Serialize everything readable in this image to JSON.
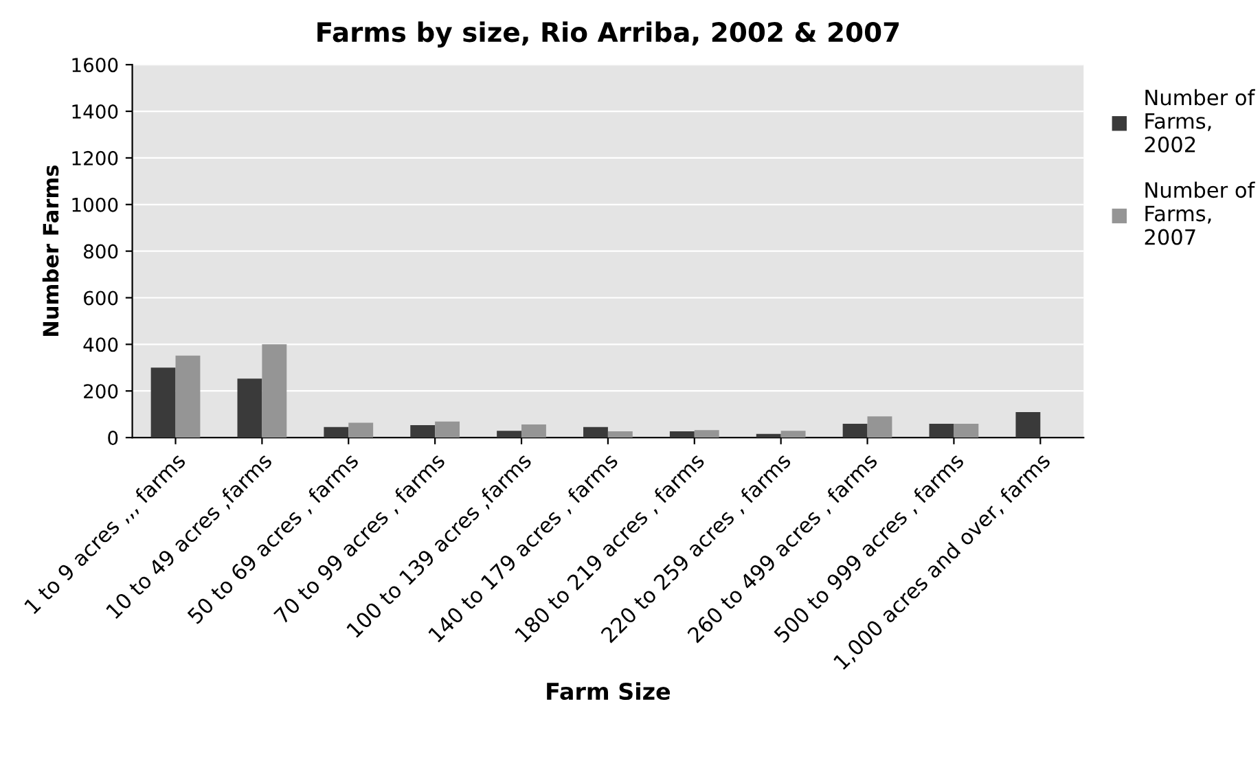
{
  "chart_data": {
    "type": "bar",
    "title": "Farms by size, Rio Arriba, 2002 & 2007",
    "xlabel": "Farm Size",
    "ylabel": "Number Farms",
    "categories": [
      "1 to 9 acres ,,, farms",
      "10 to 49 acres ,farms",
      "50 to 69 acres , farms",
      "70 to 99 acres , farms",
      "100 to 139 acres ,farms",
      "140 to 179 acres , farms",
      "180 to 219 acres , farms",
      "220 to 259 acres , farms",
      "260 to 499 acres , farms",
      "500 to 999 acres , farms",
      "1,000 acres and over, farms"
    ],
    "series": [
      {
        "name": "Number of Farms, 2002",
        "color": "#3a3a3a",
        "values": [
          300,
          253,
          45,
          53,
          29,
          45,
          27,
          16,
          59,
          59,
          109
        ]
      },
      {
        "name": "Number of Farms, 2007",
        "color": "#959595",
        "values": [
          352,
          400,
          64,
          69,
          56,
          27,
          32,
          29,
          91,
          59,
          null
        ]
      }
    ],
    "ylim": [
      0,
      1600
    ],
    "yticks": [
      0,
      200,
      400,
      600,
      800,
      1000,
      1200,
      1400,
      1600
    ],
    "grid": "y",
    "legend": "right"
  }
}
